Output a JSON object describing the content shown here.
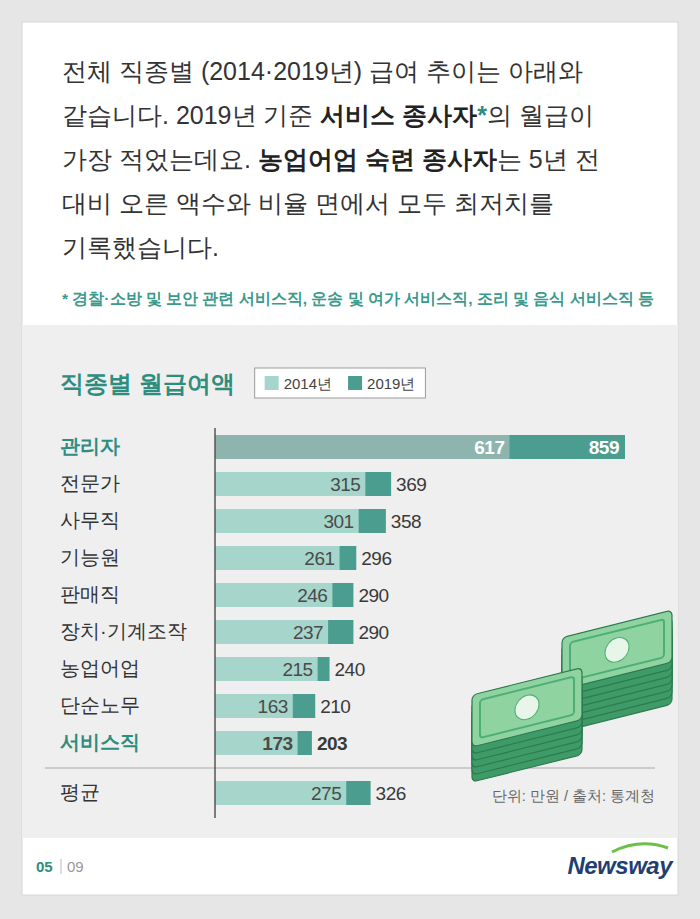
{
  "header": {
    "lines": [
      [
        {
          "text": "전체 직종별 (2014·2019년) 급여 추이는 아래와"
        }
      ],
      [
        {
          "text": "같습니다. 2019년 기준 "
        },
        {
          "text": "서비스 종사자",
          "style": "bold"
        },
        {
          "text": "*",
          "style": "accent"
        },
        {
          "text": "의 월급이"
        }
      ],
      [
        {
          "text": "가장 적었는데요. "
        },
        {
          "text": "농업어업 숙련 종사자",
          "style": "bold"
        },
        {
          "text": "는 5년 전"
        }
      ],
      [
        {
          "text": "대비 오른 액수와 비율 면에서 모두 최저치를"
        }
      ],
      [
        {
          "text": "기록했습니다."
        }
      ]
    ],
    "footnote": "* 경찰·소방 및 보안 관련 서비스직, 운송 및 여가 서비스직, 조리 및 음식 서비스직 등"
  },
  "chart_data": {
    "type": "bar",
    "orientation": "horizontal",
    "stacked": false,
    "title": "직종별 월급여액",
    "categories": [
      "관리자",
      "전문가",
      "사무직",
      "기능원",
      "판매직",
      "장치·기계조작",
      "농업어업",
      "단순노무",
      "서비스직",
      "평균"
    ],
    "series": [
      {
        "name": "2014년",
        "color": "#a5d5cb",
        "values": [
          617,
          315,
          301,
          261,
          246,
          237,
          215,
          163,
          173,
          275
        ]
      },
      {
        "name": "2019년",
        "color": "#4b9d8f",
        "values": [
          859,
          369,
          358,
          296,
          290,
          290,
          240,
          210,
          203,
          326
        ]
      }
    ],
    "xlim": [
      0,
      859
    ],
    "data_labels": true,
    "tick_labels": "y",
    "legend": "top",
    "annotation": "단위: 만원 / 출처: 통계청"
  },
  "footer": {
    "page": "05",
    "total": "09",
    "brand": "Newsway"
  }
}
